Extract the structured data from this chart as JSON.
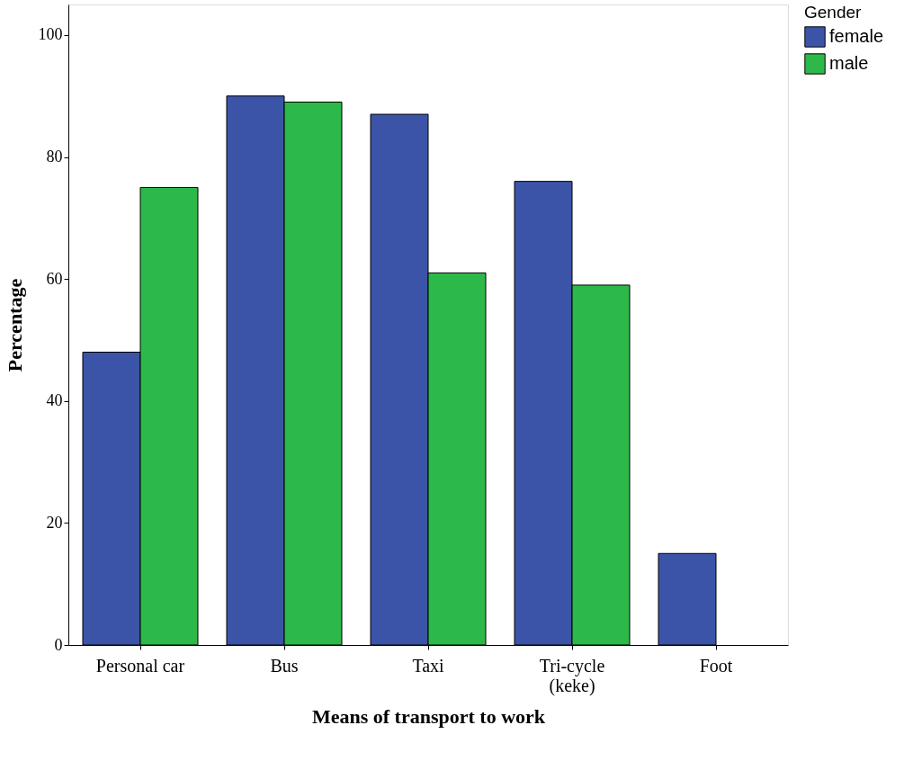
{
  "chart_data": {
    "type": "bar",
    "xlabel": "Means of transport to work",
    "ylabel": "Percentage",
    "legend_title": "Gender",
    "categories": [
      "Personal car",
      "Bus",
      "Taxi",
      "Tri-cycle\n(keke)",
      "Foot"
    ],
    "series": [
      {
        "name": "female",
        "color": "#3c54a8",
        "values": [
          48,
          90,
          87,
          76,
          15
        ]
      },
      {
        "name": "male",
        "color": "#2db84a",
        "values": [
          75,
          89,
          61,
          59,
          null
        ]
      }
    ],
    "ylim": [
      0,
      105
    ],
    "yticks": [
      0,
      20,
      40,
      60,
      80,
      100
    ],
    "grid": false,
    "legend": "top right"
  }
}
